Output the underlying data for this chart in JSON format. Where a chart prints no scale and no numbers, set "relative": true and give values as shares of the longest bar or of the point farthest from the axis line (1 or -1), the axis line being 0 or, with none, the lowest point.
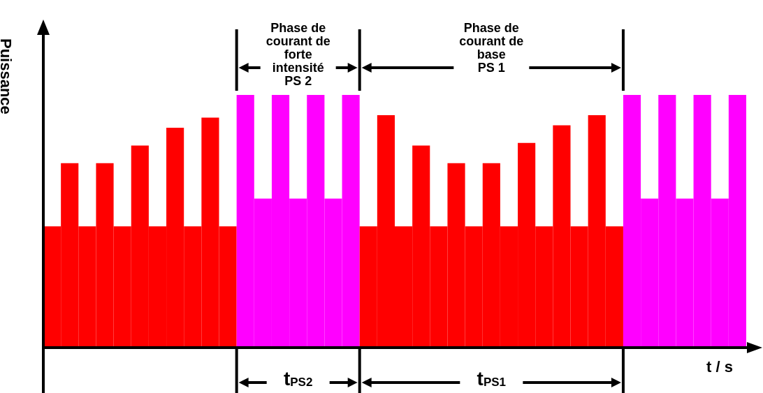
{
  "chart_data": {
    "type": "bar",
    "relative": true,
    "ylabel": "Puissance",
    "xlabel": "t / s",
    "categories": [
      null,
      null,
      null,
      null,
      null,
      null,
      null,
      null,
      null,
      null,
      null,
      null,
      null,
      null,
      null,
      null,
      null,
      null,
      null,
      null,
      null,
      null,
      null,
      null,
      null,
      null,
      null,
      null,
      null,
      null,
      null,
      null,
      null,
      null,
      null,
      null,
      null,
      null,
      null,
      null
    ],
    "values": [
      0.48,
      0.73,
      0.48,
      0.73,
      0.48,
      0.8,
      0.48,
      0.87,
      0.48,
      0.91,
      0.48,
      1,
      0.59,
      1,
      0.59,
      1,
      0.59,
      1,
      0.48,
      0.92,
      0.48,
      0.8,
      0.48,
      0.73,
      0.48,
      0.73,
      0.48,
      0.81,
      0.48,
      0.88,
      0.48,
      0.92,
      0.48,
      1,
      0.59,
      1,
      0.59,
      1,
      0.59,
      1
    ],
    "colors": [
      "#ff0000",
      "#ff0000",
      "#ff0000",
      "#ff0000",
      "#ff0000",
      "#ff0000",
      "#ff0000",
      "#ff0000",
      "#ff0000",
      "#ff0000",
      "#ff0000",
      "#ff00ff",
      "#ff00ff",
      "#ff00ff",
      "#ff00ff",
      "#ff00ff",
      "#ff00ff",
      "#ff00ff",
      "#ff0000",
      "#ff0000",
      "#ff0000",
      "#ff0000",
      "#ff0000",
      "#ff0000",
      "#ff0000",
      "#ff0000",
      "#ff0000",
      "#ff0000",
      "#ff0000",
      "#ff0000",
      "#ff0000",
      "#ff0000",
      "#ff0000",
      "#ff00ff",
      "#ff00ff",
      "#ff00ff",
      "#ff00ff",
      "#ff00ff",
      "#ff00ff",
      "#ff00ff"
    ],
    "annotations": [
      "Phase de\ncourant de\nforte\nintensité\nPS 2",
      "Phase de\ncourant de\nbase\nPS 1",
      "t$_{PS2}$",
      "t$_{PS1}$"
    ]
  }
}
